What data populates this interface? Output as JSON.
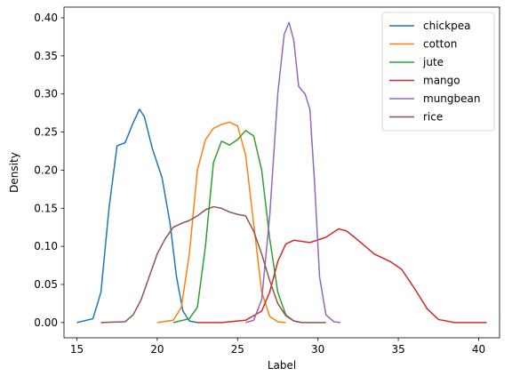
{
  "chart_data": {
    "type": "line",
    "title": "",
    "xlabel": "Label",
    "ylabel": "Density",
    "xlim": [
      14.2,
      41.3
    ],
    "ylim": [
      -0.02,
      0.414
    ],
    "xticks": [
      15,
      20,
      25,
      30,
      35,
      40
    ],
    "yticks": [
      0.0,
      0.05,
      0.1,
      0.15,
      0.2,
      0.25,
      0.3,
      0.35,
      0.4
    ],
    "ytick_labels": [
      "0.00",
      "0.05",
      "0.10",
      "0.15",
      "0.20",
      "0.25",
      "0.30",
      "0.35",
      "0.40"
    ],
    "grid": false,
    "legend": "top-right",
    "series": [
      {
        "name": "chickpea",
        "color": "#1f77b4",
        "points": [
          [
            15.0,
            0.0
          ],
          [
            16.0,
            0.005
          ],
          [
            16.5,
            0.04
          ],
          [
            17.0,
            0.15
          ],
          [
            17.5,
            0.232
          ],
          [
            18.0,
            0.236
          ],
          [
            18.5,
            0.262
          ],
          [
            18.9,
            0.28
          ],
          [
            19.2,
            0.27
          ],
          [
            19.7,
            0.228
          ],
          [
            20.3,
            0.19
          ],
          [
            20.8,
            0.13
          ],
          [
            21.2,
            0.06
          ],
          [
            21.6,
            0.015
          ],
          [
            22.0,
            0.002
          ],
          [
            22.5,
            0.0
          ]
        ]
      },
      {
        "name": "cotton",
        "color": "#ff7f0e",
        "points": [
          [
            20.0,
            0.0
          ],
          [
            21.0,
            0.003
          ],
          [
            21.5,
            0.02
          ],
          [
            22.0,
            0.09
          ],
          [
            22.5,
            0.2
          ],
          [
            23.0,
            0.24
          ],
          [
            23.5,
            0.255
          ],
          [
            24.0,
            0.26
          ],
          [
            24.5,
            0.263
          ],
          [
            25.0,
            0.258
          ],
          [
            25.5,
            0.22
          ],
          [
            26.0,
            0.13
          ],
          [
            26.5,
            0.04
          ],
          [
            27.0,
            0.008
          ],
          [
            27.5,
            0.001
          ],
          [
            28.0,
            0.0
          ]
        ]
      },
      {
        "name": "jute",
        "color": "#2ca02c",
        "points": [
          [
            21.0,
            0.0
          ],
          [
            22.0,
            0.005
          ],
          [
            22.5,
            0.02
          ],
          [
            23.0,
            0.1
          ],
          [
            23.5,
            0.21
          ],
          [
            24.0,
            0.238
          ],
          [
            24.5,
            0.233
          ],
          [
            25.0,
            0.24
          ],
          [
            25.5,
            0.252
          ],
          [
            26.0,
            0.245
          ],
          [
            26.5,
            0.2
          ],
          [
            27.0,
            0.11
          ],
          [
            27.5,
            0.04
          ],
          [
            28.0,
            0.01
          ],
          [
            28.5,
            0.002
          ],
          [
            29.0,
            0.0
          ]
        ]
      },
      {
        "name": "mango",
        "color": "#d62728",
        "points": [
          [
            22.5,
            0.0
          ],
          [
            24.0,
            0.0
          ],
          [
            25.5,
            0.003
          ],
          [
            26.5,
            0.015
          ],
          [
            27.0,
            0.04
          ],
          [
            27.5,
            0.08
          ],
          [
            28.0,
            0.103
          ],
          [
            28.5,
            0.108
          ],
          [
            29.5,
            0.105
          ],
          [
            30.5,
            0.112
          ],
          [
            31.3,
            0.123
          ],
          [
            31.8,
            0.12
          ],
          [
            32.5,
            0.108
          ],
          [
            33.5,
            0.09
          ],
          [
            34.5,
            0.08
          ],
          [
            35.2,
            0.07
          ],
          [
            36.0,
            0.045
          ],
          [
            36.8,
            0.018
          ],
          [
            37.5,
            0.004
          ],
          [
            38.5,
            0.0
          ],
          [
            40.5,
            0.0
          ]
        ]
      },
      {
        "name": "mungbean",
        "color": "#9467bd",
        "points": [
          [
            25.5,
            0.0
          ],
          [
            26.0,
            0.003
          ],
          [
            26.5,
            0.03
          ],
          [
            27.0,
            0.14
          ],
          [
            27.5,
            0.3
          ],
          [
            27.9,
            0.378
          ],
          [
            28.2,
            0.394
          ],
          [
            28.5,
            0.37
          ],
          [
            28.8,
            0.31
          ],
          [
            29.2,
            0.3
          ],
          [
            29.5,
            0.28
          ],
          [
            29.8,
            0.18
          ],
          [
            30.1,
            0.06
          ],
          [
            30.5,
            0.01
          ],
          [
            31.0,
            0.001
          ],
          [
            31.4,
            0.0
          ]
        ]
      },
      {
        "name": "rice",
        "color": "#8c564b",
        "points": [
          [
            16.5,
            0.0
          ],
          [
            18.0,
            0.001
          ],
          [
            18.5,
            0.01
          ],
          [
            19.0,
            0.03
          ],
          [
            19.5,
            0.06
          ],
          [
            20.0,
            0.09
          ],
          [
            20.5,
            0.11
          ],
          [
            21.0,
            0.125
          ],
          [
            21.5,
            0.13
          ],
          [
            22.0,
            0.134
          ],
          [
            22.5,
            0.14
          ],
          [
            23.0,
            0.148
          ],
          [
            23.5,
            0.152
          ],
          [
            24.0,
            0.15
          ],
          [
            24.5,
            0.145
          ],
          [
            25.0,
            0.142
          ],
          [
            25.5,
            0.14
          ],
          [
            26.0,
            0.12
          ],
          [
            26.5,
            0.09
          ],
          [
            27.0,
            0.055
          ],
          [
            27.5,
            0.025
          ],
          [
            28.0,
            0.009
          ],
          [
            28.5,
            0.002
          ],
          [
            29.0,
            0.0
          ],
          [
            30.5,
            0.0
          ]
        ]
      }
    ]
  }
}
